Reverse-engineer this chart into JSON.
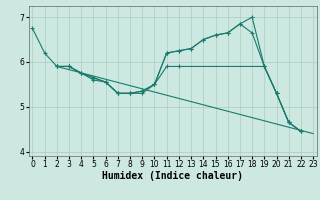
{
  "xlabel": "Humidex (Indice chaleur)",
  "bg_color": "#cce8e0",
  "grid_color": "#aaccC4",
  "line_color": "#1a7a6e",
  "series": [
    {
      "x": [
        0,
        1,
        2,
        3,
        4,
        5,
        6,
        7,
        8,
        9,
        10,
        11,
        12,
        13,
        14,
        15,
        16,
        17,
        18,
        19,
        20,
        21,
        22,
        23
      ],
      "y": [
        6.75,
        6.2,
        5.9,
        5.9,
        5.75,
        5.6,
        5.55,
        5.3,
        5.3,
        5.35,
        5.5,
        6.2,
        6.25,
        6.3,
        6.5,
        6.6,
        6.65,
        6.85,
        7.0,
        5.9,
        5.3,
        4.65,
        4.45,
        null
      ],
      "marker": true
    },
    {
      "x": [
        2,
        3,
        4,
        5,
        6,
        7,
        8,
        9,
        10,
        11,
        12,
        13,
        14,
        15,
        16,
        17,
        18,
        19,
        20,
        21,
        22,
        23
      ],
      "y": [
        5.9,
        5.9,
        5.75,
        5.65,
        5.55,
        5.3,
        5.3,
        5.35,
        5.5,
        6.2,
        6.25,
        6.3,
        6.5,
        6.6,
        6.65,
        6.85,
        6.65,
        5.9,
        5.3,
        4.65,
        4.45,
        null
      ],
      "marker": true
    },
    {
      "x": [
        2,
        3,
        4,
        5,
        6,
        7,
        8,
        9,
        10,
        11,
        12,
        19,
        20,
        21,
        22,
        23
      ],
      "y": [
        5.9,
        5.9,
        5.75,
        5.65,
        5.55,
        5.3,
        5.3,
        5.3,
        5.5,
        5.9,
        5.9,
        5.9,
        5.3,
        4.65,
        4.45,
        null
      ],
      "marker": true
    },
    {
      "x": [
        2,
        23
      ],
      "y": [
        5.9,
        4.4
      ],
      "marker": false
    }
  ],
  "xlim": [
    -0.3,
    23.3
  ],
  "ylim": [
    3.9,
    7.25
  ],
  "yticks": [
    4,
    5,
    6,
    7
  ],
  "xticks": [
    0,
    1,
    2,
    3,
    4,
    5,
    6,
    7,
    8,
    9,
    10,
    11,
    12,
    13,
    14,
    15,
    16,
    17,
    18,
    19,
    20,
    21,
    22,
    23
  ],
  "tick_fontsize": 5.5,
  "xlabel_fontsize": 7
}
